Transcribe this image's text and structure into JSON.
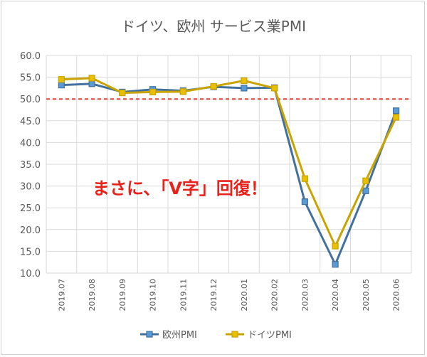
{
  "chart_data": {
    "type": "line",
    "title": "ドイツ、欧州 サービス業PMI",
    "categories": [
      "2019.07",
      "2019.08",
      "2019.09",
      "2019.10",
      "2019.11",
      "2019.12",
      "2020.01",
      "2020.02",
      "2020.03",
      "2020.04",
      "2020.05",
      "2020.06"
    ],
    "ylim": [
      10.0,
      60.0
    ],
    "yticks": [
      "60.0",
      "55.0",
      "50.0",
      "45.0",
      "40.0",
      "35.0",
      "30.0",
      "25.0",
      "20.0",
      "15.0",
      "10.0"
    ],
    "grid": true,
    "legend": "bottom",
    "reference_line": {
      "value": 50.0,
      "color": "#e0403a",
      "style": "dashed"
    },
    "annotation": {
      "text": "まさに、「V字」回復！",
      "color": "#e8211b"
    },
    "series": [
      {
        "name": "欧州PMI",
        "color": "#41719c",
        "marker_fill": "#5b9bd5",
        "values": [
          53.2,
          53.5,
          51.6,
          52.2,
          51.9,
          52.8,
          52.5,
          52.6,
          26.4,
          12.0,
          28.9,
          47.3
        ]
      },
      {
        "name": "ドイツPMI",
        "color": "#c9a400",
        "marker_fill": "#e8c000",
        "values": [
          54.5,
          54.8,
          51.4,
          51.6,
          51.7,
          52.9,
          54.2,
          52.5,
          31.7,
          16.2,
          31.2,
          45.8
        ]
      }
    ]
  }
}
